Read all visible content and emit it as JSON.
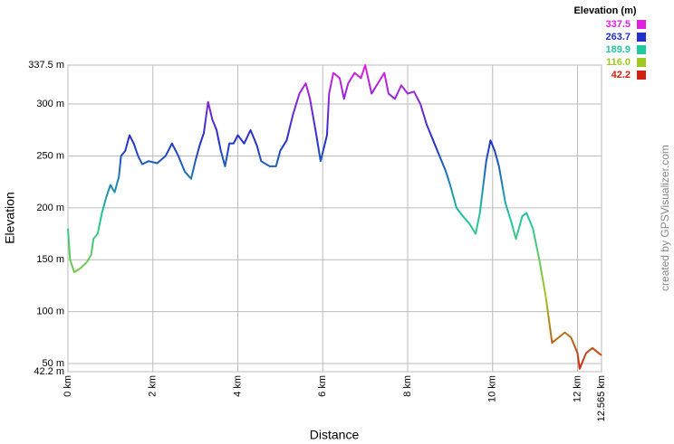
{
  "chart_data": {
    "type": "line",
    "x_label": "Distance",
    "y_label": "Elevation",
    "watermark": "created by GPSVisualizer.com",
    "legend_title": "Elevation (m)",
    "legend": [
      {
        "value": 337.5,
        "color": "#e020e0"
      },
      {
        "value": 263.7,
        "color": "#2030c8"
      },
      {
        "value": 189.9,
        "color": "#20c8a0"
      },
      {
        "value": 116,
        "label": "116.0",
        "color": "#a0c820"
      },
      {
        "value": 42.2,
        "color": "#d02010"
      }
    ],
    "xlim": [
      0,
      12.565
    ],
    "ylim": [
      42.2,
      337.5
    ],
    "xticks": [
      {
        "value": 0,
        "label": "0 km"
      },
      {
        "value": 2,
        "label": "2 km"
      },
      {
        "value": 4,
        "label": "4 km"
      },
      {
        "value": 6,
        "label": "6 km"
      },
      {
        "value": 8,
        "label": "8 km"
      },
      {
        "value": 10,
        "label": "10 km"
      },
      {
        "value": 12,
        "label": "12 km"
      },
      {
        "value": 12.565,
        "label": "12.565 km"
      }
    ],
    "yticks": [
      {
        "value": 42.2,
        "label": "42.2 m"
      },
      {
        "value": 50,
        "label": "50 m"
      },
      {
        "value": 100,
        "label": "100 m"
      },
      {
        "value": 150,
        "label": "150 m"
      },
      {
        "value": 200,
        "label": "200 m"
      },
      {
        "value": 250,
        "label": "250 m"
      },
      {
        "value": 300,
        "label": "300 m"
      },
      {
        "value": 337.5,
        "label": "337.5 m"
      }
    ],
    "grid": true,
    "series": [
      {
        "name": "Elevation",
        "x": [
          0,
          0.05,
          0.15,
          0.3,
          0.45,
          0.55,
          0.6,
          0.7,
          0.8,
          0.9,
          1.0,
          1.1,
          1.2,
          1.25,
          1.35,
          1.45,
          1.55,
          1.65,
          1.75,
          1.9,
          2.1,
          2.3,
          2.45,
          2.6,
          2.75,
          2.9,
          3.0,
          3.1,
          3.2,
          3.3,
          3.4,
          3.5,
          3.6,
          3.7,
          3.8,
          3.9,
          4.0,
          4.15,
          4.3,
          4.45,
          4.55,
          4.75,
          4.9,
          5.0,
          5.15,
          5.3,
          5.45,
          5.6,
          5.7,
          5.85,
          5.95,
          6.1,
          6.15,
          6.25,
          6.4,
          6.5,
          6.6,
          6.75,
          6.9,
          7.0,
          7.15,
          7.3,
          7.45,
          7.55,
          7.7,
          7.85,
          8.0,
          8.15,
          8.3,
          8.45,
          8.6,
          8.75,
          8.9,
          9.0,
          9.15,
          9.3,
          9.45,
          9.6,
          9.7,
          9.85,
          9.95,
          10.05,
          10.15,
          10.3,
          10.45,
          10.55,
          10.7,
          10.8,
          10.95,
          11.1,
          11.25,
          11.4,
          11.55,
          11.7,
          11.85,
          12.0,
          12.05,
          12.2,
          12.35,
          12.5,
          12.565
        ],
        "values": [
          180,
          150,
          138,
          142,
          148,
          155,
          170,
          175,
          195,
          210,
          222,
          215,
          230,
          250,
          255,
          270,
          262,
          250,
          242,
          245,
          243,
          250,
          262,
          250,
          235,
          228,
          245,
          260,
          272,
          302,
          285,
          275,
          255,
          240,
          262,
          262,
          270,
          262,
          275,
          260,
          245,
          240,
          240,
          255,
          265,
          290,
          310,
          320,
          305,
          270,
          245,
          270,
          310,
          330,
          325,
          305,
          320,
          330,
          325,
          337.5,
          310,
          320,
          330,
          310,
          305,
          318,
          310,
          312,
          300,
          280,
          265,
          250,
          235,
          222,
          200,
          192,
          185,
          175,
          195,
          245,
          265,
          255,
          240,
          205,
          185,
          170,
          192,
          195,
          180,
          150,
          115,
          70,
          75,
          80,
          75,
          60,
          45,
          60,
          65,
          60,
          58
        ]
      }
    ]
  }
}
